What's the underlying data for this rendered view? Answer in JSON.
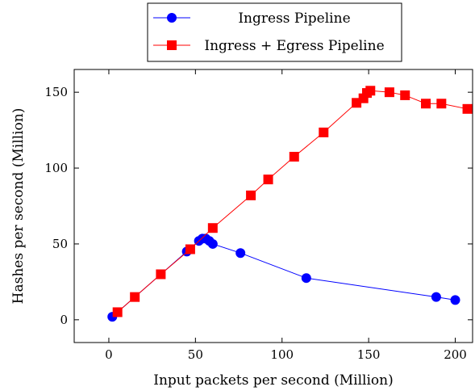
{
  "chart_data": {
    "type": "line",
    "title": "",
    "xlabel": "Input packets per second (Million)",
    "ylabel": "Hashes per second (Million)",
    "xlim": [
      -20,
      210
    ],
    "ylim": [
      -15,
      165
    ],
    "xticks": [
      0,
      50,
      100,
      150,
      200
    ],
    "yticks": [
      0,
      50,
      100,
      150
    ],
    "grid": false,
    "legend_position": "top-center",
    "series": [
      {
        "name": "Ingress Pipeline",
        "color": "#0000ff",
        "marker": "circle",
        "points": [
          [
            2,
            2
          ],
          [
            45,
            45
          ],
          [
            52,
            52
          ],
          [
            54,
            53.5
          ],
          [
            56,
            53.5
          ],
          [
            58,
            52
          ],
          [
            60,
            50
          ],
          [
            76,
            44
          ],
          [
            114,
            27.5
          ],
          [
            189,
            15
          ],
          [
            200,
            13
          ]
        ]
      },
      {
        "name": "Ingress + Egress Pipeline",
        "color": "#ff0000",
        "marker": "square",
        "points": [
          [
            5,
            5
          ],
          [
            15,
            15
          ],
          [
            30,
            30
          ],
          [
            47,
            46.5
          ],
          [
            60,
            60.5
          ],
          [
            82,
            82
          ],
          [
            92,
            92.5
          ],
          [
            107,
            107.5
          ],
          [
            124,
            123.5
          ],
          [
            143,
            143
          ],
          [
            147,
            146
          ],
          [
            149,
            149.5
          ],
          [
            151,
            151
          ],
          [
            162,
            150
          ],
          [
            171,
            148
          ],
          [
            183,
            142.5
          ],
          [
            192,
            142.5
          ],
          [
            207,
            139
          ]
        ]
      }
    ]
  }
}
